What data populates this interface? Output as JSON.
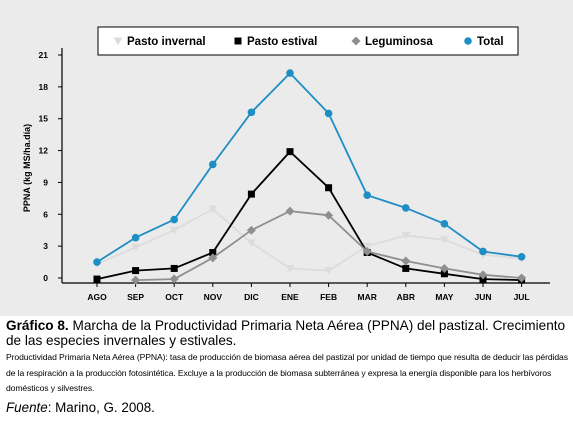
{
  "chart_data": {
    "type": "line",
    "categories": [
      "AGO",
      "SEP",
      "OCT",
      "NOV",
      "DIC",
      "ENE",
      "FEB",
      "MAR",
      "ABR",
      "MAY",
      "JUN",
      "JUL"
    ],
    "ylabel": "PPNA (kg MS/ha.día)",
    "yticks": [
      "0",
      "3",
      "6",
      "9",
      "12",
      "15",
      "18",
      "21"
    ],
    "ylim": [
      0,
      21
    ],
    "grid": false,
    "legend_position": "top",
    "series": [
      {
        "name": "Pasto invernal",
        "marker": "triangle-down",
        "color": "#dcdcdc",
        "values": [
          1.3,
          2.9,
          4.5,
          6.5,
          3.3,
          0.9,
          0.7,
          3.0,
          4.0,
          3.6,
          2.2,
          1.8
        ]
      },
      {
        "name": "Pasto estival",
        "marker": "square",
        "color": "#000000",
        "values": [
          -0.1,
          0.7,
          0.9,
          2.4,
          7.9,
          11.9,
          8.5,
          2.4,
          0.9,
          0.4,
          -0.1,
          -0.2
        ]
      },
      {
        "name": "Leguminosa",
        "marker": "diamond",
        "color": "#8f8f8f",
        "values": [
          null,
          -0.2,
          -0.1,
          1.9,
          4.5,
          6.3,
          5.9,
          2.5,
          1.6,
          0.9,
          0.3,
          0.0
        ]
      },
      {
        "name": "Total",
        "marker": "circle",
        "color": "#1e8ec5",
        "values": [
          1.5,
          3.8,
          5.5,
          10.7,
          15.6,
          19.3,
          15.5,
          7.8,
          6.6,
          5.1,
          2.5,
          2.0
        ]
      }
    ]
  },
  "caption": {
    "label": "Gráfico 8.",
    "title": " Marcha de la Productividad Primaria Neta Aérea (PPNA) del pastizal. Crecimiento de las especies invernales y estivales.",
    "description": "Productividad Primaria Neta Aérea (PPNA): tasa de producción de biomasa aérea del pastizal por unidad de tiempo que resulta de deducir las pérdidas de la respiración a la producción fotosintética. Excluye a la producción de biomasa subterránea y expresa la energía disponible para los herbívoros domésticos y silvestres.",
    "source_label": "Fuente",
    "source_text": ": Marino, G. 2008."
  }
}
